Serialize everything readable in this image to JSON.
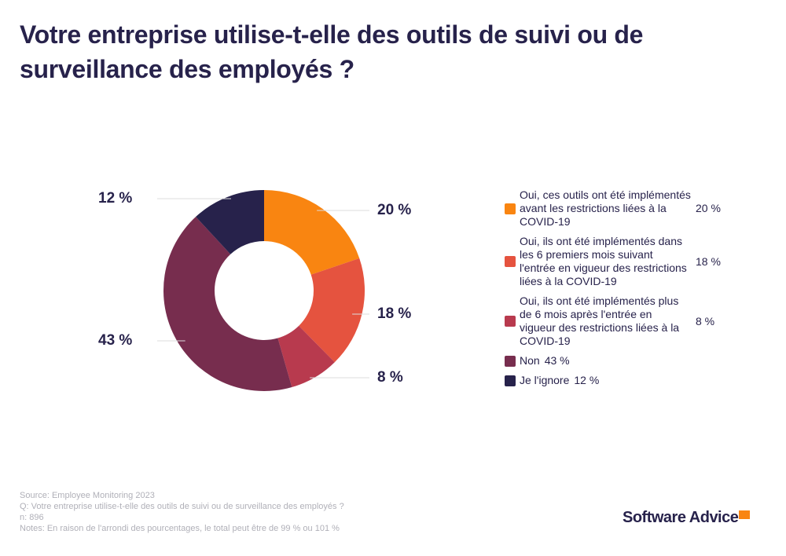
{
  "chart_data": {
    "type": "donut",
    "title": "Votre entreprise utilise-t-elle des outils de suivi ou de surveillance des employés ?",
    "categories": [
      "Oui, ces outils ont été implémentés avant les restrictions liées à la COVID-19",
      "Oui, ils ont été implémentés dans les 6 premiers mois suivant l'entrée en vigueur des restrictions liées à la COVID-19",
      "Oui, ils ont été implémentés plus de 6 mois après l'entrée en vigueur des restrictions liées à la COVID-19",
      "Non",
      "Je l'ignore"
    ],
    "values": [
      20,
      18,
      8,
      43,
      12
    ],
    "value_labels": [
      "20 %",
      "18 %",
      "8 %",
      "43 %",
      "12 %"
    ],
    "colors": [
      "#f98511",
      "#e5533f",
      "#b83a4e",
      "#772d4e",
      "#27224b"
    ],
    "footnotes": [
      "Source: Employee Monitoring 2023",
      "Q: Votre entreprise utilise-t-elle des outils de suivi ou de surveillance des employés ?",
      "n: 896",
      "Notes: En raison de l'arrondi des pourcentages, le total peut être de 99 % ou 101 %"
    ],
    "logo": "Software Advice"
  }
}
